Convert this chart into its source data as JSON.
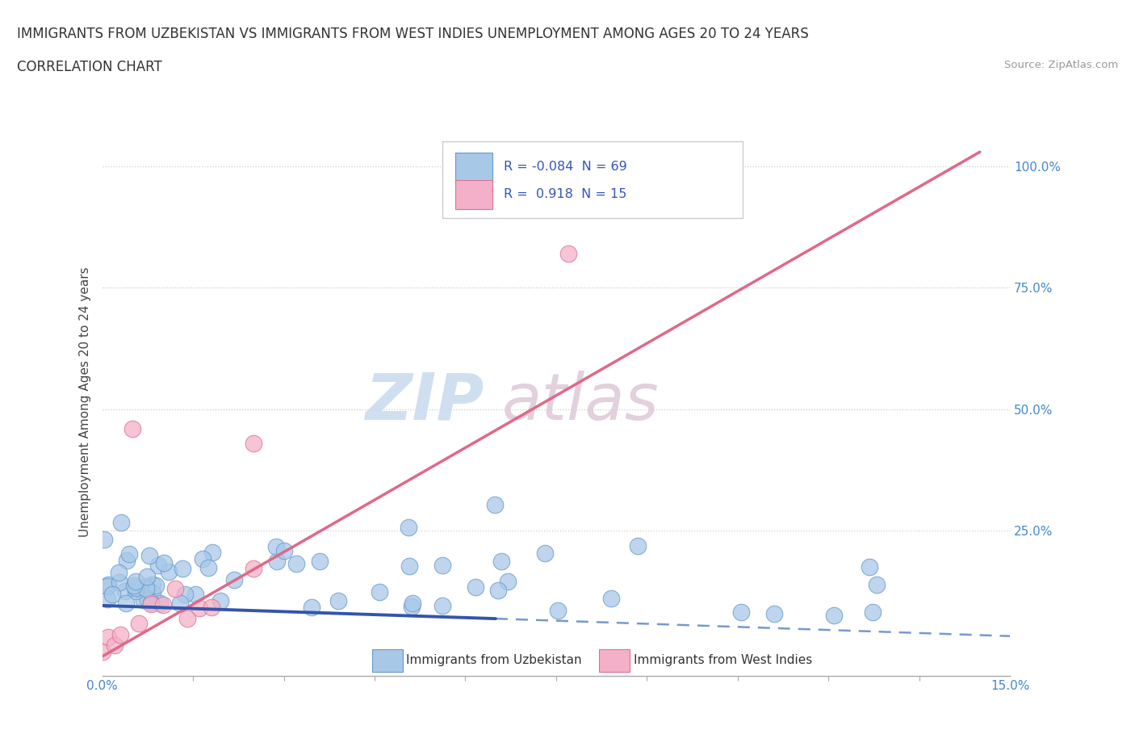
{
  "title_line1": "IMMIGRANTS FROM UZBEKISTAN VS IMMIGRANTS FROM WEST INDIES UNEMPLOYMENT AMONG AGES 20 TO 24 YEARS",
  "title_line2": "CORRELATION CHART",
  "source_text": "Source: ZipAtlas.com",
  "ylabel": "Unemployment Among Ages 20 to 24 years",
  "xlim": [
    0.0,
    0.15
  ],
  "ylim": [
    -0.05,
    1.08
  ],
  "ytick_values": [
    0.25,
    0.5,
    0.75,
    1.0
  ],
  "uzbekistan_scatter_color": "#a8c8e8",
  "uzbekistan_edge_color": "#6699cc",
  "west_indies_scatter_color": "#f4b0c8",
  "west_indies_edge_color": "#e07090",
  "uzbekistan_trend_solid_color": "#3355aa",
  "uzbekistan_trend_dash_color": "#7799cc",
  "west_indies_trend_color": "#e06888",
  "grid_color": "#cccccc",
  "background_color": "#ffffff",
  "legend_R1": "-0.084",
  "legend_N1": "69",
  "legend_R2": "0.918",
  "legend_N2": "15",
  "legend_label1": "Immigrants from Uzbekistan",
  "legend_label2": "Immigrants from West Indies",
  "watermark_zip_color": "#c8daee",
  "watermark_atlas_color": "#ddc8d8",
  "right_tick_color": "#4488cc",
  "title_color": "#333333",
  "source_color": "#999999"
}
